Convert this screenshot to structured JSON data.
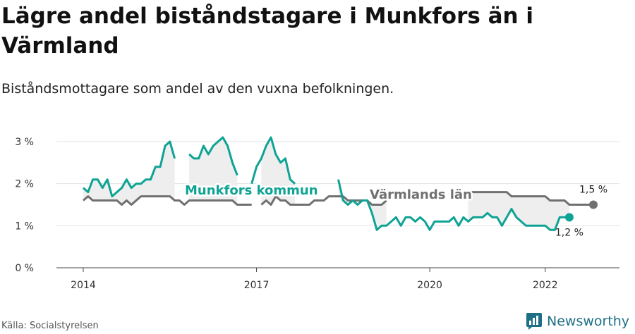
{
  "title": "Lägre andel biståndstagare i Munkfors än i Värmland",
  "subtitle": "Biståndsmottagare som andel av den vuxna befolkningen.",
  "source": "Källa: Socialstyrelsen",
  "brand": "Newsworthy",
  "colors": {
    "munkfors": "#0ea394",
    "varmland": "#707070",
    "fill": "#eeeeee",
    "grid": "#e2e2e2",
    "brand": "#1e6f86"
  },
  "chart_data": {
    "type": "line",
    "x_start": "2014-01",
    "x_step": "month",
    "xlim": [
      "2014-01",
      "2022-12"
    ],
    "ylim": [
      0,
      3.2
    ],
    "y_ticks": [
      {
        "value": 0,
        "label": "0 %"
      },
      {
        "value": 1,
        "label": "1 %"
      },
      {
        "value": 2,
        "label": "2 %"
      },
      {
        "value": 3,
        "label": "3 %"
      }
    ],
    "x_ticks": [
      {
        "value": "2014-01",
        "label": "2014"
      },
      {
        "value": "2017-01",
        "label": "2017"
      },
      {
        "value": "2020-01",
        "label": "2020"
      },
      {
        "value": "2022-01",
        "label": "2022"
      }
    ],
    "grid": true,
    "series": [
      {
        "name": "Munkfors kommun",
        "color": "#0ea394",
        "end_label": "1,2 %",
        "values": [
          1.9,
          1.8,
          2.1,
          2.1,
          1.9,
          2.1,
          1.7,
          1.8,
          1.9,
          2.1,
          1.9,
          2.0,
          2.0,
          2.1,
          2.1,
          2.4,
          2.4,
          2.9,
          3.0,
          2.6,
          null,
          null,
          2.7,
          2.6,
          2.6,
          2.9,
          2.7,
          2.9,
          3.0,
          3.1,
          2.9,
          2.5,
          2.2,
          null,
          null,
          2.0,
          2.4,
          2.6,
          2.9,
          3.1,
          2.7,
          2.5,
          2.6,
          2.1,
          2.0,
          null,
          null,
          null,
          null,
          null,
          null,
          null,
          null,
          2.1,
          1.6,
          1.5,
          1.6,
          1.5,
          1.6,
          1.6,
          1.3,
          0.9,
          1.0,
          1.0,
          1.1,
          1.2,
          1.0,
          1.2,
          1.2,
          1.1,
          1.2,
          1.1,
          0.9,
          1.1,
          1.1,
          1.1,
          1.1,
          1.2,
          1.0,
          1.2,
          1.1,
          1.2,
          1.2,
          1.2,
          1.3,
          1.2,
          1.2,
          1.0,
          1.2,
          1.4,
          1.2,
          1.1,
          1.0,
          1.0,
          1.0,
          1.0,
          1.0,
          0.9,
          0.9,
          1.2,
          1.2,
          1.2
        ]
      },
      {
        "name": "Värmlands län",
        "color": "#707070",
        "end_label": "1,5 %",
        "values": [
          1.6,
          1.7,
          1.6,
          1.6,
          1.6,
          1.6,
          1.6,
          1.6,
          1.5,
          1.6,
          1.5,
          1.6,
          1.7,
          1.7,
          1.7,
          1.7,
          1.7,
          1.7,
          1.7,
          1.6,
          1.6,
          1.5,
          1.6,
          1.6,
          1.6,
          1.6,
          1.6,
          1.6,
          1.6,
          1.6,
          1.6,
          1.6,
          1.5,
          1.5,
          1.5,
          1.5,
          null,
          1.5,
          1.6,
          1.5,
          1.7,
          1.6,
          1.6,
          1.5,
          1.5,
          1.5,
          1.5,
          1.5,
          1.6,
          1.6,
          1.6,
          1.7,
          1.7,
          1.7,
          1.7,
          1.6,
          1.6,
          1.6,
          1.6,
          1.6,
          1.5,
          1.5,
          1.5,
          1.6,
          null,
          null,
          null,
          null,
          null,
          null,
          null,
          null,
          null,
          null,
          null,
          null,
          null,
          null,
          null,
          null,
          1.8,
          1.8,
          1.8,
          1.8,
          1.8,
          1.8,
          1.8,
          1.8,
          1.8,
          1.7,
          1.7,
          1.7,
          1.7,
          1.7,
          1.7,
          1.7,
          1.7,
          1.6,
          1.6,
          1.6,
          1.6,
          1.5,
          1.5,
          1.5,
          1.5,
          1.5,
          1.5
        ]
      }
    ]
  }
}
